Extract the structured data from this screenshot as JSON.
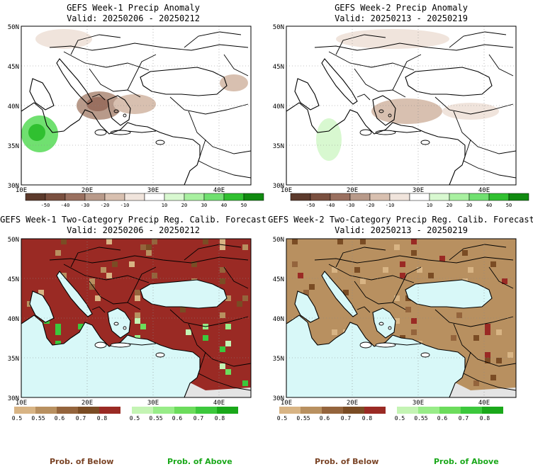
{
  "panels": [
    {
      "title": "GEFS Week-1 Precip Anomaly",
      "valid": "Valid: 20250206 - 20250212",
      "type": "anomaly"
    },
    {
      "title": "GEFS Week-2 Precip Anomaly",
      "valid": "Valid: 20250213 - 20250219",
      "type": "anomaly"
    },
    {
      "title": "GEFS Week-1 Two-Category Precip Reg. Calib. Forecast",
      "valid": "Valid: 20250206 - 20250212",
      "type": "prob"
    },
    {
      "title": "GEFS Week-2 Two-Category Precip Reg. Calib. Forecast",
      "valid": "Valid: 20250213 - 20250219",
      "type": "prob"
    }
  ],
  "axes": {
    "lat_labels": [
      "50N",
      "45N",
      "40N",
      "35N",
      "30N"
    ],
    "lon_labels": [
      "10E",
      "20E",
      "30E",
      "40E"
    ]
  },
  "anomaly_colorbar": {
    "labels": [
      "-50",
      "-40",
      "-30",
      "-20",
      "-10",
      "10",
      "20",
      "30",
      "40",
      "50"
    ],
    "colors": [
      "#5c3a2c",
      "#7a5040",
      "#9a7060",
      "#b89a8a",
      "#d8c0b0",
      "#f0e4dc",
      "#ffffff",
      "#d8f8d0",
      "#a8f0a0",
      "#70e070",
      "#30c030",
      "#108a10"
    ]
  },
  "prob_below_colorbar": {
    "labels": [
      "0.5",
      "0.55",
      "0.6",
      "0.7",
      "0.8"
    ],
    "colors": [
      "#d8b484",
      "#b89060",
      "#94643c",
      "#7a4c24",
      "#9a2a24"
    ]
  },
  "prob_above_colorbar": {
    "labels": [
      "0.5",
      "0.55",
      "0.6",
      "0.7",
      "0.8"
    ],
    "colors": [
      "#c4f4b4",
      "#98ec88",
      "#6cdc5c",
      "#3cc83c",
      "#1aa81a"
    ]
  },
  "footer": {
    "below_label": "Prob. of Below",
    "above_label": "Prob. of Above",
    "below_color": "#7a4426",
    "above_color": "#1aa81a"
  },
  "colors": {
    "sea": "#d8f8f8",
    "dry_gray": "#e4e4e4",
    "dark_red": "#9a2a24"
  }
}
